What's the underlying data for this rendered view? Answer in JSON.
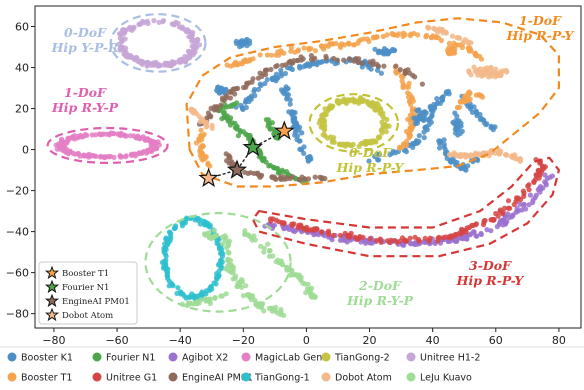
{
  "chart_data": {
    "type": "scatter",
    "title": "",
    "xlabel": "",
    "ylabel": "",
    "xlim": [
      -86,
      87
    ],
    "ylim": [
      -87,
      70
    ],
    "xticks": [
      -80,
      -60,
      -40,
      -20,
      0,
      20,
      40,
      60,
      80
    ],
    "yticks": [
      60,
      40,
      20,
      0,
      -20,
      -40,
      -60,
      -80
    ],
    "grid": false,
    "legend_placement": "bottom",
    "series": [
      {
        "name": "Booster K1",
        "color": "#4c8fc7"
      },
      {
        "name": "Booster T1",
        "color": "#f5a24c"
      },
      {
        "name": "Fourier N1",
        "color": "#4ea64b"
      },
      {
        "name": "Unitree G1",
        "color": "#d64545"
      },
      {
        "name": "Agibot X2",
        "color": "#9b72cf"
      },
      {
        "name": "EngineAI PM01",
        "color": "#8f6b5c"
      },
      {
        "name": "MagicLab Gen1",
        "color": "#e47fc6"
      },
      {
        "name": "TianGong-1",
        "color": "#2fbfcf"
      },
      {
        "name": "TianGong-2",
        "color": "#c4c443"
      },
      {
        "name": "Dobot Atom",
        "color": "#f3b98a"
      },
      {
        "name": "Unitree H1-2",
        "color": "#c6a6d6"
      },
      {
        "name": "LeJu Kuavo",
        "color": "#9fdc95"
      }
    ],
    "clusters": [
      {
        "label": "0-DoF\nHip Y-P-R",
        "color": "#a9bee3",
        "series": "Unitree H1-2",
        "shape": "ring",
        "cx": -47,
        "cy": 52,
        "rx": 12,
        "ry": 11
      },
      {
        "label": "1-DoF\nHip R-Y-P",
        "color": "#e05fae",
        "series": "MagicLab Gen1",
        "shape": "ring",
        "cx": -63,
        "cy": 2,
        "rx": 15,
        "ry": 6
      },
      {
        "label": "1-DoF\nHip R-P-Y",
        "color": "#f28a20",
        "series": "multi",
        "shape": "region"
      },
      {
        "label": "0-DoF\nHip R-P-Y",
        "color": "#c2c236",
        "series": "TianGong-2",
        "shape": "ring",
        "cx": 15,
        "cy": 13,
        "rx": 11,
        "ry": 11
      },
      {
        "label": "2-DoF\nHip R-Y-P",
        "color": "#9fdc95",
        "series": "TianGong-1 / LeJu Kuavo",
        "shape": "ring",
        "cx": -30,
        "cy": -55,
        "rx": 18,
        "ry": 20
      },
      {
        "label": "3-DoF\nHip R-P-Y",
        "color": "#d63636",
        "series": "Unitree G1 / Agibot X2",
        "shape": "band"
      }
    ],
    "star_markers": [
      {
        "name": "Booster T1",
        "x": -7,
        "y": 9,
        "color": "#f5a24c"
      },
      {
        "name": "Fourier N1",
        "x": -17,
        "y": 1,
        "color": "#4ea64b"
      },
      {
        "name": "EngineAI PM01",
        "x": -22,
        "y": -10,
        "color": "#8f6b5c"
      },
      {
        "name": "Dobot Atom",
        "x": -31,
        "y": -14,
        "color": "#f3b98a"
      }
    ]
  },
  "inset_legend": [
    {
      "label": "Booster T1",
      "color": "#f5a24c"
    },
    {
      "label": "Fourier N1",
      "color": "#4ea64b"
    },
    {
      "label": "EngineAI PM01",
      "color": "#8f6b5c"
    },
    {
      "label": "Dobot Atom",
      "color": "#f3b98a"
    }
  ]
}
